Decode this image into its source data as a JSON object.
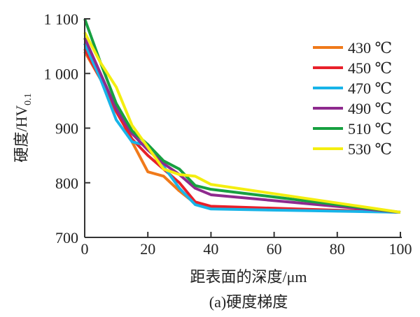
{
  "chart_data": {
    "type": "line",
    "title": "(a)硬度梯度",
    "xlabel": "距表面的深度/μm",
    "ylabel": "硬度/HV",
    "ylabel_sub": "0.1",
    "xlim": [
      0,
      100
    ],
    "ylim": [
      700,
      1100
    ],
    "xticks": [
      0,
      20,
      40,
      60,
      80,
      100
    ],
    "xtick_labels": [
      "0",
      "20",
      "40",
      "60",
      "80",
      "100"
    ],
    "yticks": [
      700,
      800,
      900,
      1000,
      1100
    ],
    "ytick_labels": [
      "700",
      "800",
      "900",
      "1 000",
      "1 100"
    ],
    "legend_position": "top-right",
    "series": [
      {
        "name": "430 ℃",
        "color": "#f07a1a",
        "x": [
          0,
          5,
          10,
          15,
          20,
          25,
          30,
          35,
          40,
          100
        ],
        "y": [
          1040,
          990,
          935,
          875,
          820,
          812,
          785,
          762,
          755,
          746
        ]
      },
      {
        "name": "450 ℃",
        "color": "#e8202a",
        "x": [
          0,
          5,
          10,
          15,
          20,
          25,
          30,
          35,
          40,
          100
        ],
        "y": [
          1045,
          990,
          930,
          880,
          850,
          825,
          800,
          765,
          757,
          746
        ]
      },
      {
        "name": "470 ℃",
        "color": "#18b4e8",
        "x": [
          0,
          5,
          10,
          15,
          20,
          25,
          30,
          35,
          40,
          100
        ],
        "y": [
          1055,
          990,
          915,
          875,
          868,
          830,
          790,
          760,
          752,
          746
        ]
      },
      {
        "name": "490 ℃",
        "color": "#8e2a8e",
        "x": [
          0,
          5,
          10,
          15,
          20,
          25,
          30,
          35,
          40,
          100
        ],
        "y": [
          1065,
          1000,
          935,
          890,
          860,
          835,
          815,
          790,
          778,
          746
        ]
      },
      {
        "name": "510 ℃",
        "color": "#17a040",
        "x": [
          0,
          5,
          10,
          15,
          20,
          25,
          30,
          35,
          40,
          100
        ],
        "y": [
          1100,
          1020,
          945,
          895,
          870,
          840,
          825,
          795,
          788,
          746
        ]
      },
      {
        "name": "530 ℃",
        "color": "#f4ee10",
        "x": [
          0,
          5,
          10,
          15,
          20,
          25,
          30,
          35,
          40,
          100
        ],
        "y": [
          1075,
          1020,
          975,
          905,
          865,
          825,
          815,
          812,
          797,
          746
        ]
      }
    ]
  }
}
